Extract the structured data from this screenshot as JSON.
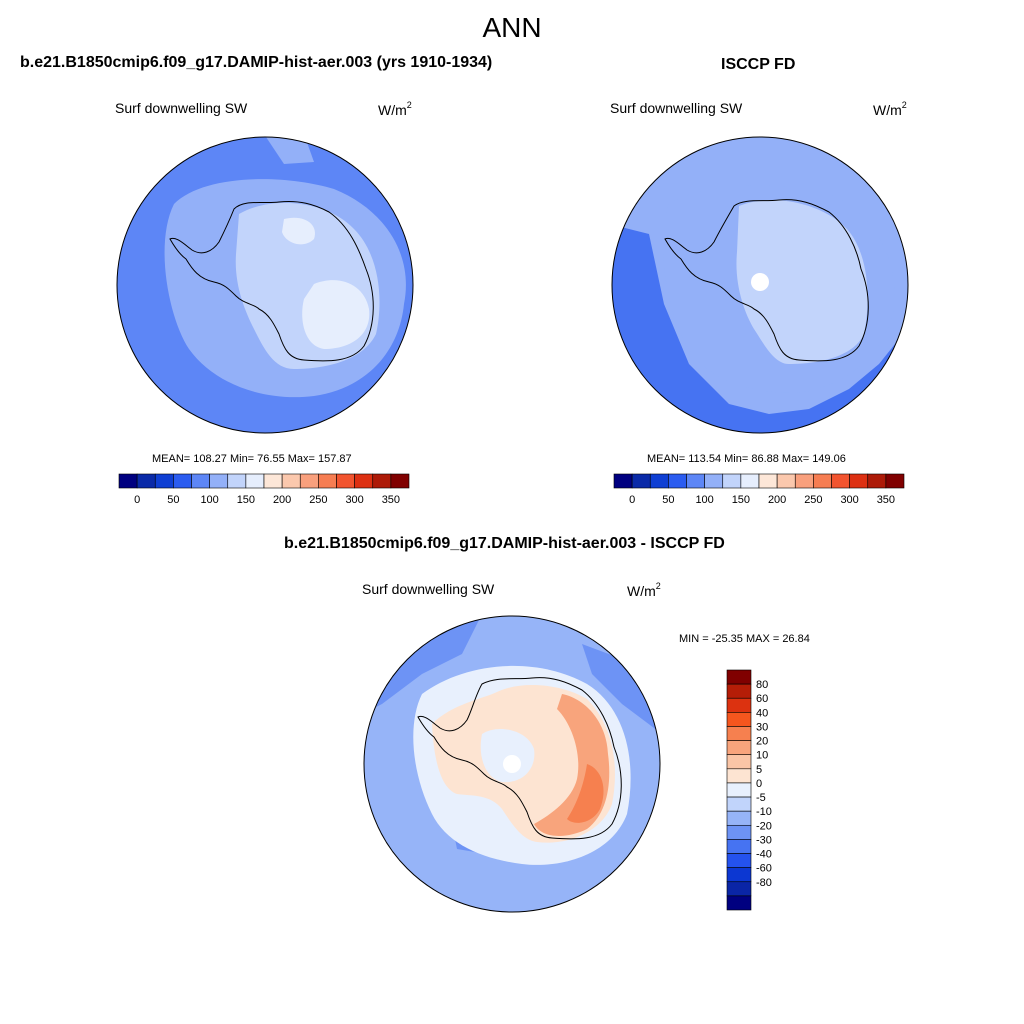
{
  "figure": {
    "season": "ANN",
    "unit_base": "W/m",
    "unit_exp": "2"
  },
  "panels": {
    "model": {
      "title": "b.e21.B1850cmip6.f09_g17.DAMIP-hist-aer.003 (yrs 1910-1934)",
      "variable": "Surf downwelling SW",
      "stats": "MEAN= 108.27  Min=  76.55  Max= 157.87"
    },
    "obs": {
      "title": "ISCCP FD",
      "variable": "Surf downwelling SW",
      "stats": "MEAN= 113.54  Min=  86.88  Max= 149.06"
    },
    "diff": {
      "title": "b.e21.B1850cmip6.f09_g17.DAMIP-hist-aer.003 - ISCCP FD",
      "variable": "Surf downwelling SW",
      "stats": "MIN = -25.35 MAX =  26.84"
    }
  },
  "colorbars": {
    "abs_colors": [
      "#000080",
      "#0a2aa8",
      "#0f3fd3",
      "#2b5cf0",
      "#5d86f6",
      "#93b0f8",
      "#c2d4fb",
      "#e6eefd",
      "#fde7d8",
      "#fbc8ad",
      "#f9a07d",
      "#f67d52",
      "#f2542f",
      "#dd3012",
      "#ad1a08",
      "#800000"
    ],
    "abs_labels": [
      "0",
      "50",
      "100",
      "150",
      "200",
      "250",
      "300",
      "350"
    ],
    "diff_colors": [
      "#800000",
      "#b51d07",
      "#dc3210",
      "#f5561e",
      "#f6804f",
      "#f8a47c",
      "#fac5a6",
      "#fde4d2",
      "#e8f0fd",
      "#c1d4fb",
      "#96b4f8",
      "#6d93f5",
      "#4673f2",
      "#2452ee",
      "#0c37d2",
      "#0a25a6",
      "#000080"
    ],
    "diff_labels": [
      "80",
      "60",
      "40",
      "30",
      "20",
      "10",
      "5",
      "0",
      "-5",
      "-10",
      "-20",
      "-30",
      "-40",
      "-60",
      "-80"
    ]
  },
  "maps": {
    "ocean_blue": "#5d86f6",
    "mid_blue": "#93b0f8",
    "light_blue": "#c2d4fb",
    "pale_blue": "#e6eefd",
    "strong_blue": "#4673f2",
    "diff_ocean": "#96b4f8",
    "diff_ocean_dark": "#6d93f5",
    "diff_pale": "#e8f0fd",
    "diff_peach": "#fde4d2",
    "diff_orange": "#f8a47c",
    "diff_red": "#f6804f"
  }
}
